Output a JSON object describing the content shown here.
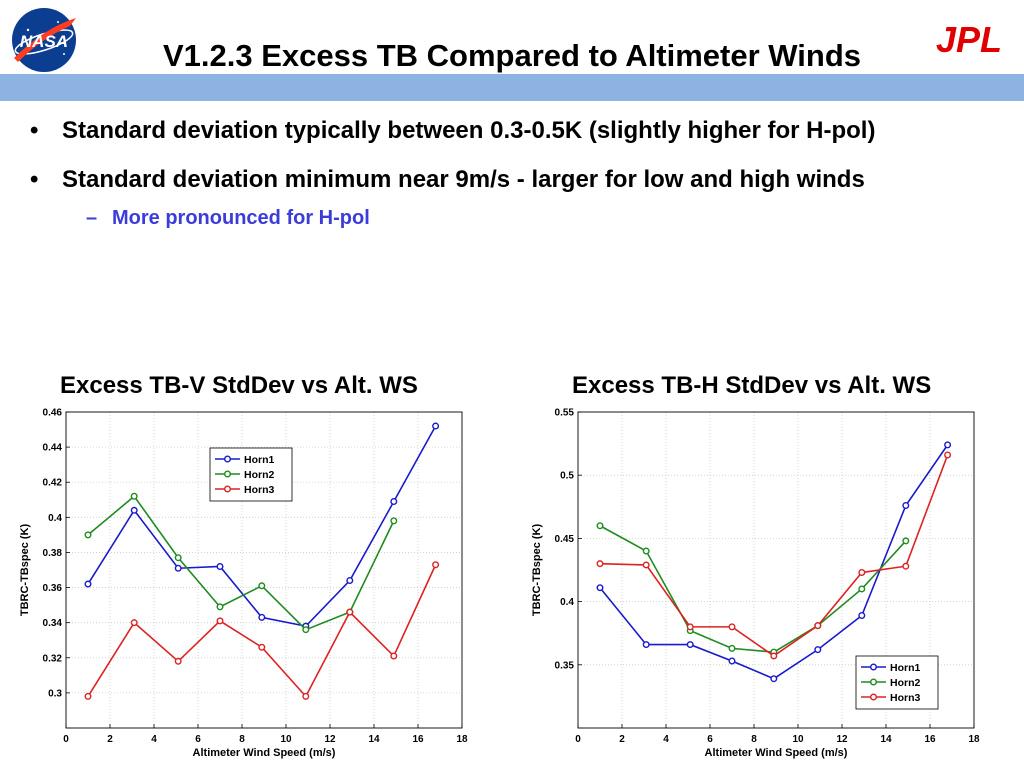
{
  "title": "V1.2.3 Excess TB Compared to Altimeter Winds",
  "logos": {
    "left": "NASA",
    "right": "JPL"
  },
  "colors": {
    "title_bar": "#8db3e2",
    "sub_bullet": "#3c3cdc",
    "horn1": "#1a1acc",
    "horn2": "#1e8c1e",
    "horn3": "#dd2222"
  },
  "bullets": [
    {
      "text": "Standard deviation typically between 0.3-0.5K (slightly higher for H-pol)"
    },
    {
      "text": "Standard deviation minimum near 9m/s - larger for low and high winds",
      "sub": "More pronounced for H-pol"
    }
  ],
  "chart_data": [
    {
      "type": "line",
      "title": "Excess TB-V StdDev vs Alt. WS",
      "xlabel": "Altimeter Wind Speed (m/s)",
      "ylabel": "TBRC-TBspec (K)",
      "xlim": [
        0,
        18
      ],
      "ylim": [
        0.28,
        0.46
      ],
      "xticks": [
        0,
        2,
        4,
        6,
        8,
        10,
        12,
        14,
        16,
        18
      ],
      "xtick_labels": [
        "0",
        "2",
        "4",
        "6",
        "8",
        "10",
        "12",
        "14",
        "16",
        "18"
      ],
      "yticks": [
        0.3,
        0.32,
        0.34,
        0.36,
        0.38,
        0.4,
        0.42,
        0.44,
        0.46
      ],
      "ytick_labels": [
        "0.3",
        "0.32",
        "0.34",
        "0.36",
        "0.38",
        "0.4",
        "0.42",
        "0.44",
        "0.46"
      ],
      "grid": true,
      "legend_position": "top-center",
      "series": [
        {
          "name": "Horn1",
          "color": "#1a1acc",
          "x": [
            1,
            3.1,
            5.1,
            7,
            8.9,
            10.9,
            12.9,
            14.9,
            16.8
          ],
          "y": [
            0.362,
            0.404,
            0.371,
            0.372,
            0.343,
            0.338,
            0.364,
            0.409,
            0.452
          ]
        },
        {
          "name": "Horn2",
          "color": "#1e8c1e",
          "x": [
            1,
            3.1,
            5.1,
            7,
            8.9,
            10.9,
            12.9,
            14.9
          ],
          "y": [
            0.39,
            0.412,
            0.377,
            0.349,
            0.361,
            0.336,
            0.346,
            0.398
          ]
        },
        {
          "name": "Horn3",
          "color": "#dd2222",
          "x": [
            1,
            3.1,
            5.1,
            7,
            8.9,
            10.9,
            12.9,
            14.9,
            16.8
          ],
          "y": [
            0.298,
            0.34,
            0.318,
            0.341,
            0.326,
            0.298,
            0.346,
            0.321,
            0.373
          ]
        }
      ]
    },
    {
      "type": "line",
      "title": "Excess TB-H StdDev vs Alt. WS",
      "xlabel": "Altimeter Wind Speed (m/s)",
      "ylabel": "TBRC-TBspec (K)",
      "xlim": [
        0,
        18
      ],
      "ylim": [
        0.3,
        0.55
      ],
      "xticks": [
        0,
        2,
        4,
        6,
        8,
        10,
        12,
        14,
        16,
        18
      ],
      "xtick_labels": [
        "0",
        "2",
        "4",
        "6",
        "8",
        "10",
        "12",
        "14",
        "16",
        "18"
      ],
      "yticks": [
        0.35,
        0.4,
        0.45,
        0.5,
        0.55
      ],
      "ytick_labels": [
        "0.35",
        "0.4",
        "0.45",
        "0.5",
        "0.55"
      ],
      "grid": true,
      "legend_position": "bottom-right",
      "series": [
        {
          "name": "Horn1",
          "color": "#1a1acc",
          "x": [
            1,
            3.1,
            5.1,
            7,
            8.9,
            10.9,
            12.9,
            14.9,
            16.8
          ],
          "y": [
            0.411,
            0.366,
            0.366,
            0.353,
            0.339,
            0.362,
            0.389,
            0.476,
            0.524
          ]
        },
        {
          "name": "Horn2",
          "color": "#1e8c1e",
          "x": [
            1,
            3.1,
            5.1,
            7,
            8.9,
            10.9,
            12.9,
            14.9
          ],
          "y": [
            0.46,
            0.44,
            0.377,
            0.363,
            0.36,
            0.381,
            0.41,
            0.448
          ]
        },
        {
          "name": "Horn3",
          "color": "#dd2222",
          "x": [
            1,
            3.1,
            5.1,
            7,
            8.9,
            10.9,
            12.9,
            14.9,
            16.8
          ],
          "y": [
            0.43,
            0.429,
            0.38,
            0.38,
            0.357,
            0.381,
            0.423,
            0.428,
            0.516
          ]
        }
      ]
    }
  ]
}
